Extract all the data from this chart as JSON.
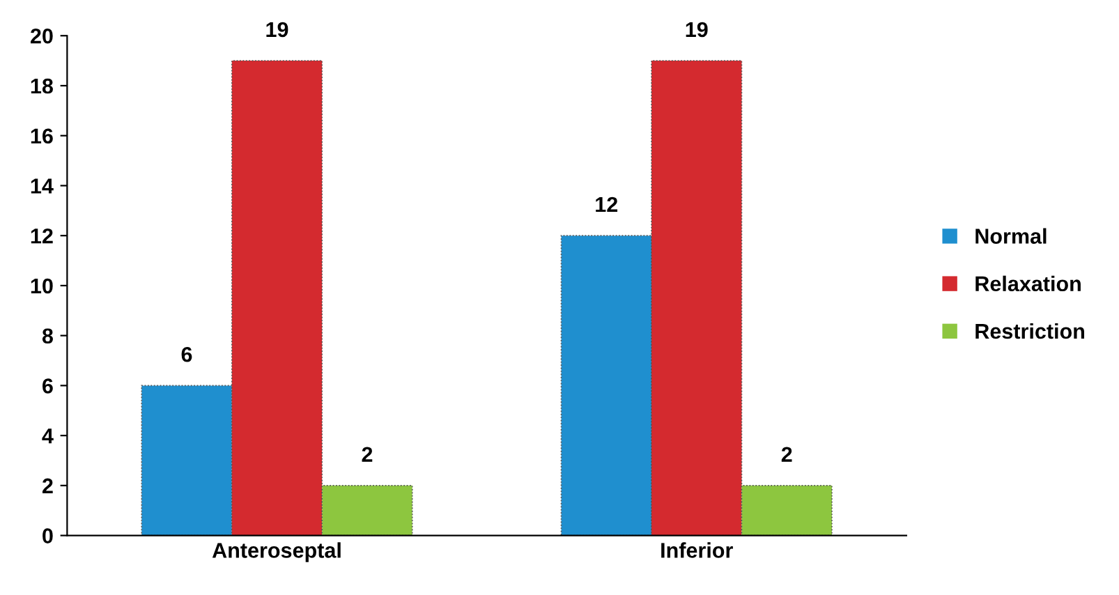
{
  "chart_data": {
    "type": "bar",
    "categories": [
      "Anteroseptal",
      "Inferior"
    ],
    "series": [
      {
        "name": "Normal",
        "color": "#1f8fcf",
        "values": [
          6,
          12
        ]
      },
      {
        "name": "Relaxation",
        "color": "#d42a2f",
        "values": [
          19,
          19
        ]
      },
      {
        "name": "Restriction",
        "color": "#8dc63f",
        "values": [
          2,
          2
        ]
      }
    ],
    "ylim": [
      0,
      20
    ],
    "yticks": [
      0,
      2,
      4,
      6,
      8,
      10,
      12,
      14,
      16,
      18,
      20
    ],
    "grid": false,
    "legend": "right",
    "data_labels": true
  }
}
